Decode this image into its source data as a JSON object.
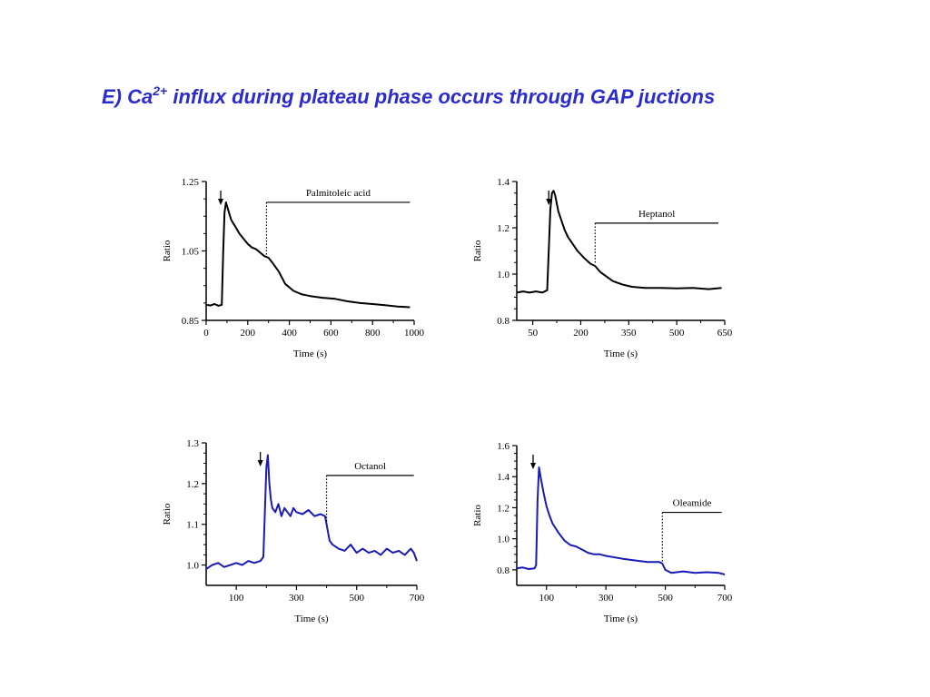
{
  "title": {
    "prefix": "E) Ca",
    "superscript": "2+",
    "suffix": " influx  during plateau phase occurs through GAP juctions",
    "color": "#2b2bd0"
  },
  "chart_data": [
    {
      "type": "line",
      "xlabel": "Time (s)",
      "ylabel": "Ratio",
      "xlim": [
        0,
        1000
      ],
      "ylim": [
        0.85,
        1.25
      ],
      "xticks": [
        0,
        200,
        400,
        600,
        800,
        1000
      ],
      "xtick_labels": [
        "0",
        "200",
        "400",
        "600",
        "800",
        "1000"
      ],
      "yticks": [
        0.85,
        1.05,
        1.25
      ],
      "ytick_labels": [
        "0.85",
        "1.05",
        "1.25"
      ],
      "color": "#000000",
      "annotation": {
        "label": "Palmitoleic acid",
        "start_x": 290,
        "end_x": 980,
        "y": 1.19
      },
      "arrow_x": 70,
      "series": [
        {
          "x": [
            0,
            20,
            40,
            60,
            75,
            82,
            88,
            95,
            100,
            110,
            120,
            140,
            160,
            180,
            200,
            220,
            240,
            260,
            280,
            300,
            320,
            350,
            380,
            420,
            460,
            500,
            560,
            620,
            680,
            740,
            800,
            860,
            920,
            980
          ],
          "y": [
            0.895,
            0.893,
            0.897,
            0.892,
            0.895,
            1.05,
            1.16,
            1.19,
            1.18,
            1.16,
            1.14,
            1.12,
            1.1,
            1.085,
            1.07,
            1.06,
            1.055,
            1.045,
            1.035,
            1.03,
            1.015,
            0.99,
            0.955,
            0.935,
            0.925,
            0.92,
            0.915,
            0.912,
            0.905,
            0.9,
            0.897,
            0.894,
            0.89,
            0.888
          ]
        }
      ]
    },
    {
      "type": "line",
      "xlabel": "Time (s)",
      "ylabel": "Ratio",
      "xlim": [
        0,
        650
      ],
      "ylim": [
        0.8,
        1.4
      ],
      "xticks": [
        50,
        200,
        350,
        500,
        650
      ],
      "xtick_labels": [
        "50",
        "200",
        "350",
        "500",
        "650"
      ],
      "yticks": [
        0.8,
        1.0,
        1.2,
        1.4
      ],
      "ytick_labels": [
        "0.8",
        "1.0",
        "1.2",
        "1.4"
      ],
      "color": "#000000",
      "annotation": {
        "label": "Heptanol",
        "start_x": 245,
        "end_x": 630,
        "y": 1.22
      },
      "arrow_x": 100,
      "series": [
        {
          "x": [
            0,
            20,
            40,
            60,
            80,
            95,
            100,
            105,
            110,
            115,
            120,
            130,
            140,
            150,
            160,
            175,
            190,
            210,
            230,
            245,
            260,
            280,
            300,
            330,
            360,
            400,
            450,
            500,
            550,
            600,
            640
          ],
          "y": [
            0.92,
            0.925,
            0.92,
            0.925,
            0.92,
            0.93,
            1.1,
            1.28,
            1.35,
            1.36,
            1.34,
            1.27,
            1.23,
            1.19,
            1.16,
            1.13,
            1.1,
            1.07,
            1.045,
            1.035,
            1.01,
            0.99,
            0.97,
            0.955,
            0.945,
            0.94,
            0.94,
            0.938,
            0.94,
            0.935,
            0.94
          ]
        }
      ]
    },
    {
      "type": "line",
      "xlabel": "Time (s)",
      "ylabel": "Ratio",
      "xlim": [
        0,
        700
      ],
      "ylim": [
        0.95,
        1.3
      ],
      "xticks": [
        100,
        300,
        500,
        700
      ],
      "xtick_labels": [
        "100",
        "300",
        "500",
        "700"
      ],
      "yticks": [
        1.0,
        1.1,
        1.2,
        1.3
      ],
      "ytick_labels": [
        "1.0",
        "1.1",
        "1.2",
        "1.3"
      ],
      "color": "#1a1ab8",
      "annotation": {
        "label": "Octanol",
        "start_x": 400,
        "end_x": 690,
        "y": 1.22
      },
      "arrow_x": 180,
      "series": [
        {
          "x": [
            0,
            20,
            40,
            60,
            80,
            100,
            120,
            140,
            160,
            180,
            190,
            200,
            205,
            210,
            215,
            220,
            230,
            240,
            250,
            260,
            270,
            280,
            290,
            300,
            320,
            340,
            360,
            380,
            395,
            400,
            405,
            410,
            420,
            440,
            460,
            480,
            500,
            520,
            540,
            560,
            580,
            600,
            620,
            640,
            660,
            680,
            690,
            700
          ],
          "y": [
            0.99,
            1.0,
            1.005,
            0.995,
            1.0,
            1.005,
            1.0,
            1.01,
            1.005,
            1.01,
            1.02,
            1.24,
            1.27,
            1.2,
            1.16,
            1.14,
            1.13,
            1.15,
            1.12,
            1.14,
            1.13,
            1.12,
            1.14,
            1.13,
            1.125,
            1.135,
            1.12,
            1.125,
            1.12,
            1.1,
            1.08,
            1.06,
            1.05,
            1.04,
            1.035,
            1.05,
            1.03,
            1.04,
            1.03,
            1.035,
            1.025,
            1.04,
            1.03,
            1.035,
            1.025,
            1.04,
            1.03,
            1.01
          ]
        }
      ]
    },
    {
      "type": "line",
      "xlabel": "Time (s)",
      "ylabel": "Ratio",
      "xlim": [
        0,
        700
      ],
      "ylim": [
        0.7,
        1.6
      ],
      "xticks": [
        100,
        300,
        500,
        700
      ],
      "xtick_labels": [
        "100",
        "300",
        "500",
        "700"
      ],
      "yticks": [
        0.8,
        1.0,
        1.2,
        1.4,
        1.6
      ],
      "ytick_labels": [
        "0.8",
        "1.0",
        "1.2",
        "1.4",
        "1.6"
      ],
      "color": "#1a1ab8",
      "annotation": {
        "label": "Oleamide",
        "start_x": 490,
        "end_x": 690,
        "y": 1.17
      },
      "arrow_x": 55,
      "series": [
        {
          "x": [
            0,
            20,
            40,
            60,
            65,
            70,
            75,
            80,
            90,
            100,
            110,
            120,
            140,
            160,
            180,
            200,
            220,
            240,
            260,
            280,
            300,
            330,
            360,
            400,
            440,
            480,
            490,
            500,
            520,
            560,
            600,
            640,
            680,
            700
          ],
          "y": [
            0.81,
            0.815,
            0.805,
            0.81,
            0.83,
            1.25,
            1.46,
            1.4,
            1.3,
            1.21,
            1.15,
            1.1,
            1.04,
            0.99,
            0.96,
            0.95,
            0.93,
            0.91,
            0.9,
            0.9,
            0.89,
            0.88,
            0.87,
            0.86,
            0.85,
            0.85,
            0.84,
            0.8,
            0.78,
            0.79,
            0.78,
            0.785,
            0.78,
            0.77
          ]
        }
      ]
    }
  ]
}
